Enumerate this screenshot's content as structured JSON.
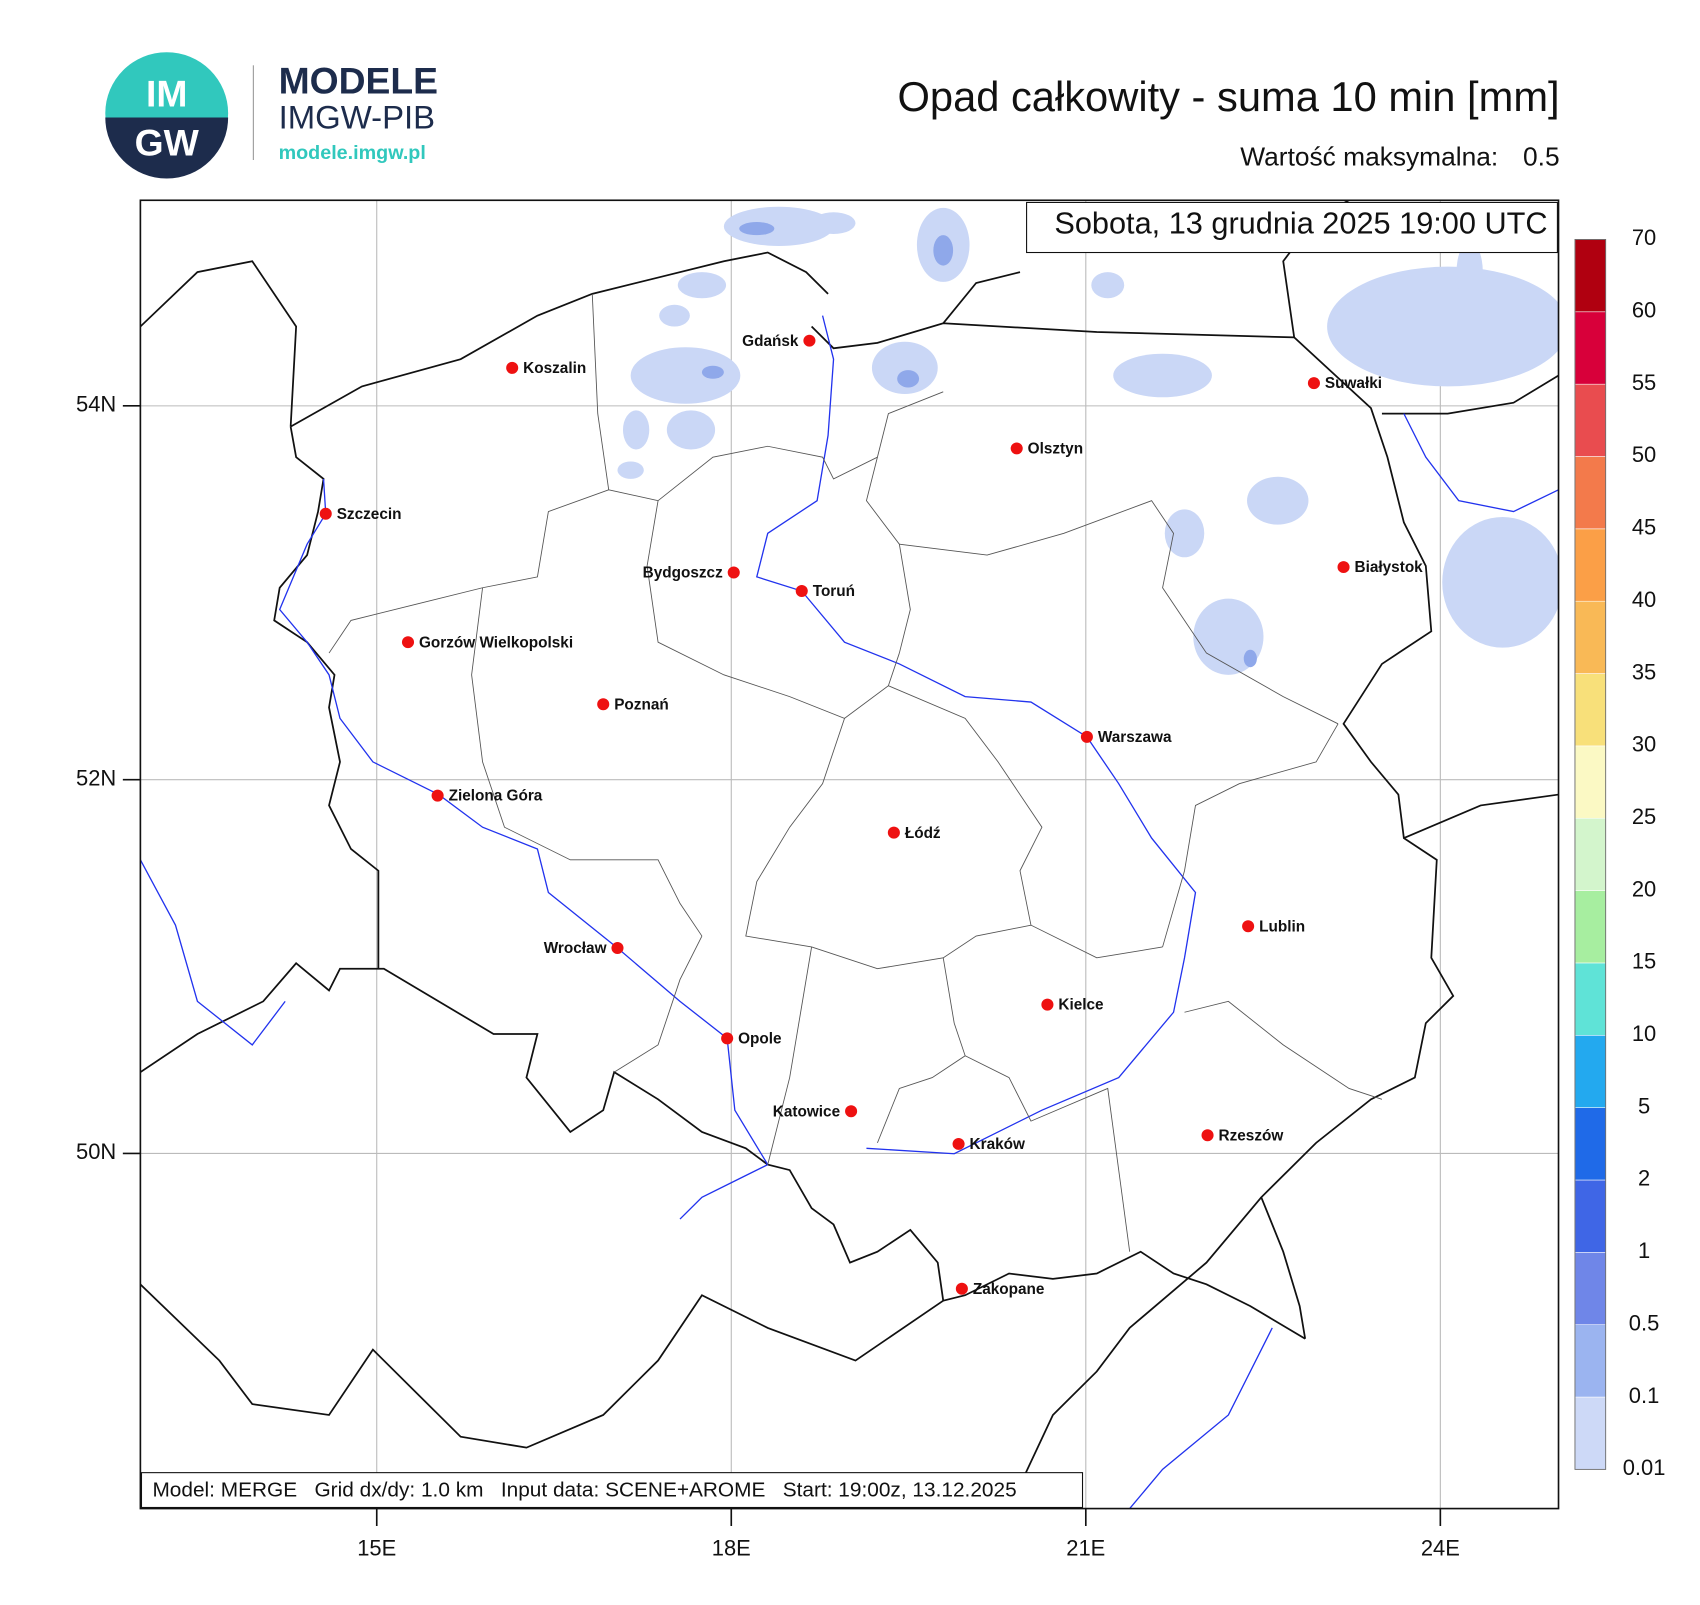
{
  "header": {
    "logo_top": "IM",
    "logo_bottom": "GW",
    "brand": "MODELE",
    "brand_sub": "IMGW-PIB",
    "url": "modele.imgw.pl"
  },
  "chart_data": {
    "type": "map",
    "title": "Opad całkowity - suma 10 min [mm]",
    "max_label": "Wartość maksymalna:",
    "max_value": 0.5,
    "date": "Sobota, 13 grudnia 2025 19:00 UTC",
    "footer": "Model: MERGE   Grid dx/dy: 1.0 km   Input data: SCENE+AROME   Start: 19:00z, 13.12.2025",
    "xlim": [
      13,
      25
    ],
    "ylim": [
      48.1,
      55.1
    ],
    "xticks": [
      {
        "value": 15,
        "label": "15E"
      },
      {
        "value": 18,
        "label": "18E"
      },
      {
        "value": 21,
        "label": "21E"
      },
      {
        "value": 24,
        "label": "24E"
      }
    ],
    "yticks": [
      {
        "value": 50,
        "label": "50N"
      },
      {
        "value": 52,
        "label": "52N"
      },
      {
        "value": 54,
        "label": "54N"
      }
    ],
    "grid": true,
    "cities": [
      "Gdańsk",
      "Koszalin",
      "Szczecin",
      "Olsztyn",
      "Suwałki",
      "Bydgoszcz",
      "Toruń",
      "Białystok",
      "Gorzów Wielkopolski",
      "Poznań",
      "Warszawa",
      "Zielona Góra",
      "Łódź",
      "Lublin",
      "Wrocław",
      "Kielce",
      "Opole",
      "Katowice",
      "Kraków",
      "Rzeszów",
      "Zakopane"
    ],
    "colorbar": {
      "levels": [
        0.01,
        0.1,
        0.5,
        1,
        2,
        5,
        10,
        15,
        20,
        25,
        30,
        35,
        40,
        45,
        50,
        55,
        60,
        70
      ],
      "colors": [
        "#cdd9f7",
        "#9bb4f0",
        "#6f86e8",
        "#3f66e6",
        "#1f6ae8",
        "#23a9ef",
        "#5fe3d7",
        "#a7eea0",
        "#d3f5cc",
        "#fbf9c4",
        "#f8e07a",
        "#f9b956",
        "#fb9f47",
        "#f37a4b",
        "#e94c4f",
        "#d8003a",
        "#b00010",
        "#7c0008"
      ]
    }
  }
}
